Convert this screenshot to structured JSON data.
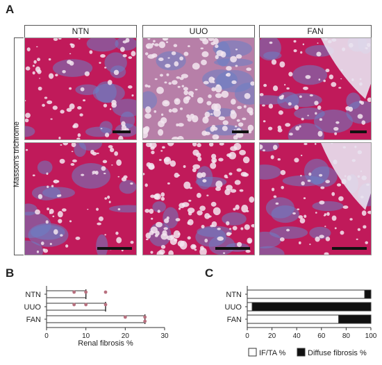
{
  "panel_a": {
    "letter": "A",
    "columns": [
      "NTN",
      "UUO",
      "FAN"
    ],
    "row_label": "Masson's trichrome"
  },
  "panel_b": {
    "letter": "B"
  },
  "panel_c": {
    "letter": "C"
  },
  "colors": {
    "tissue_red": "#c01a5a",
    "fibrosis_blue": "#6b7fc4",
    "lumen": "#f3e6f0",
    "dot": "#b8707f",
    "diffuse_fill": "#111111"
  },
  "chart_data": [
    {
      "type": "bar",
      "orientation": "horizontal",
      "categories": [
        "NTN",
        "UUO",
        "FAN"
      ],
      "values": [
        10,
        15,
        25
      ],
      "points": [
        [
          7,
          10,
          15
        ],
        [
          7,
          10,
          15
        ],
        [
          20,
          25,
          25
        ]
      ],
      "xlabel": "Renal fibrosis %",
      "xlim": [
        0,
        30
      ],
      "xticks": [
        0,
        10,
        20,
        30
      ]
    },
    {
      "type": "bar",
      "orientation": "horizontal",
      "stacked": true,
      "categories": [
        "NTN",
        "UUO",
        "FAN"
      ],
      "series": [
        {
          "name": "IF/TA %",
          "values": [
            95,
            4,
            74
          ]
        },
        {
          "name": "Diffuse fibrosis %",
          "values": [
            5,
            96,
            26
          ]
        }
      ],
      "xlim": [
        0,
        100
      ],
      "xticks": [
        0,
        20,
        40,
        60,
        80,
        100
      ],
      "legend": "bottom"
    }
  ]
}
